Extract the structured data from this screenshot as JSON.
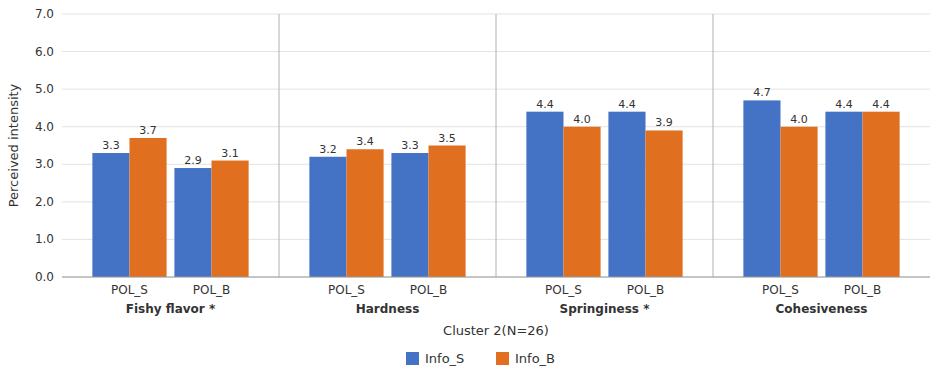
{
  "chart_data": {
    "type": "bar",
    "categories": [
      "POL_S",
      "POL_B",
      "POL_S",
      "POL_B",
      "POL_S",
      "POL_B",
      "POL_S",
      "POL_B"
    ],
    "groups": [
      "Fishy flavor *",
      "Hardness",
      "Springiness *",
      "Cohesiveness"
    ],
    "series": [
      {
        "name": "Info_S",
        "color": "#4472C4",
        "values": [
          3.3,
          2.9,
          3.2,
          3.3,
          4.4,
          4.4,
          4.7,
          4.4
        ],
        "value_labels": [
          "3.3",
          "2.9",
          "3.2",
          "3.3",
          "4.4",
          "4.4",
          "4.7",
          "4.4"
        ]
      },
      {
        "name": "Info_B",
        "color": "#E07020",
        "values": [
          3.7,
          3.1,
          3.4,
          3.5,
          4.0,
          3.9,
          4.0,
          4.4
        ],
        "value_labels": [
          "3.7",
          "3.1",
          "3.4",
          "3.5",
          "4.0",
          "3.9",
          "4.0",
          "4.4"
        ]
      }
    ],
    "xlabel": "Cluster 2(N=26)",
    "ylabel": "Perceived intensity",
    "ylim": [
      0,
      7.0
    ],
    "yticks": [
      {
        "value": 0.0,
        "label": "0.0"
      },
      {
        "value": 1.0,
        "label": "1.0"
      },
      {
        "value": 2.0,
        "label": "2.0"
      },
      {
        "value": 3.0,
        "label": "3.0"
      },
      {
        "value": 4.0,
        "label": "4.0"
      },
      {
        "value": 5.0,
        "label": "5.0"
      },
      {
        "value": 6.0,
        "label": "6.0"
      },
      {
        "value": 7.0,
        "label": "7.0"
      }
    ],
    "grid": true,
    "data_labels": true,
    "legend": "bottom"
  }
}
